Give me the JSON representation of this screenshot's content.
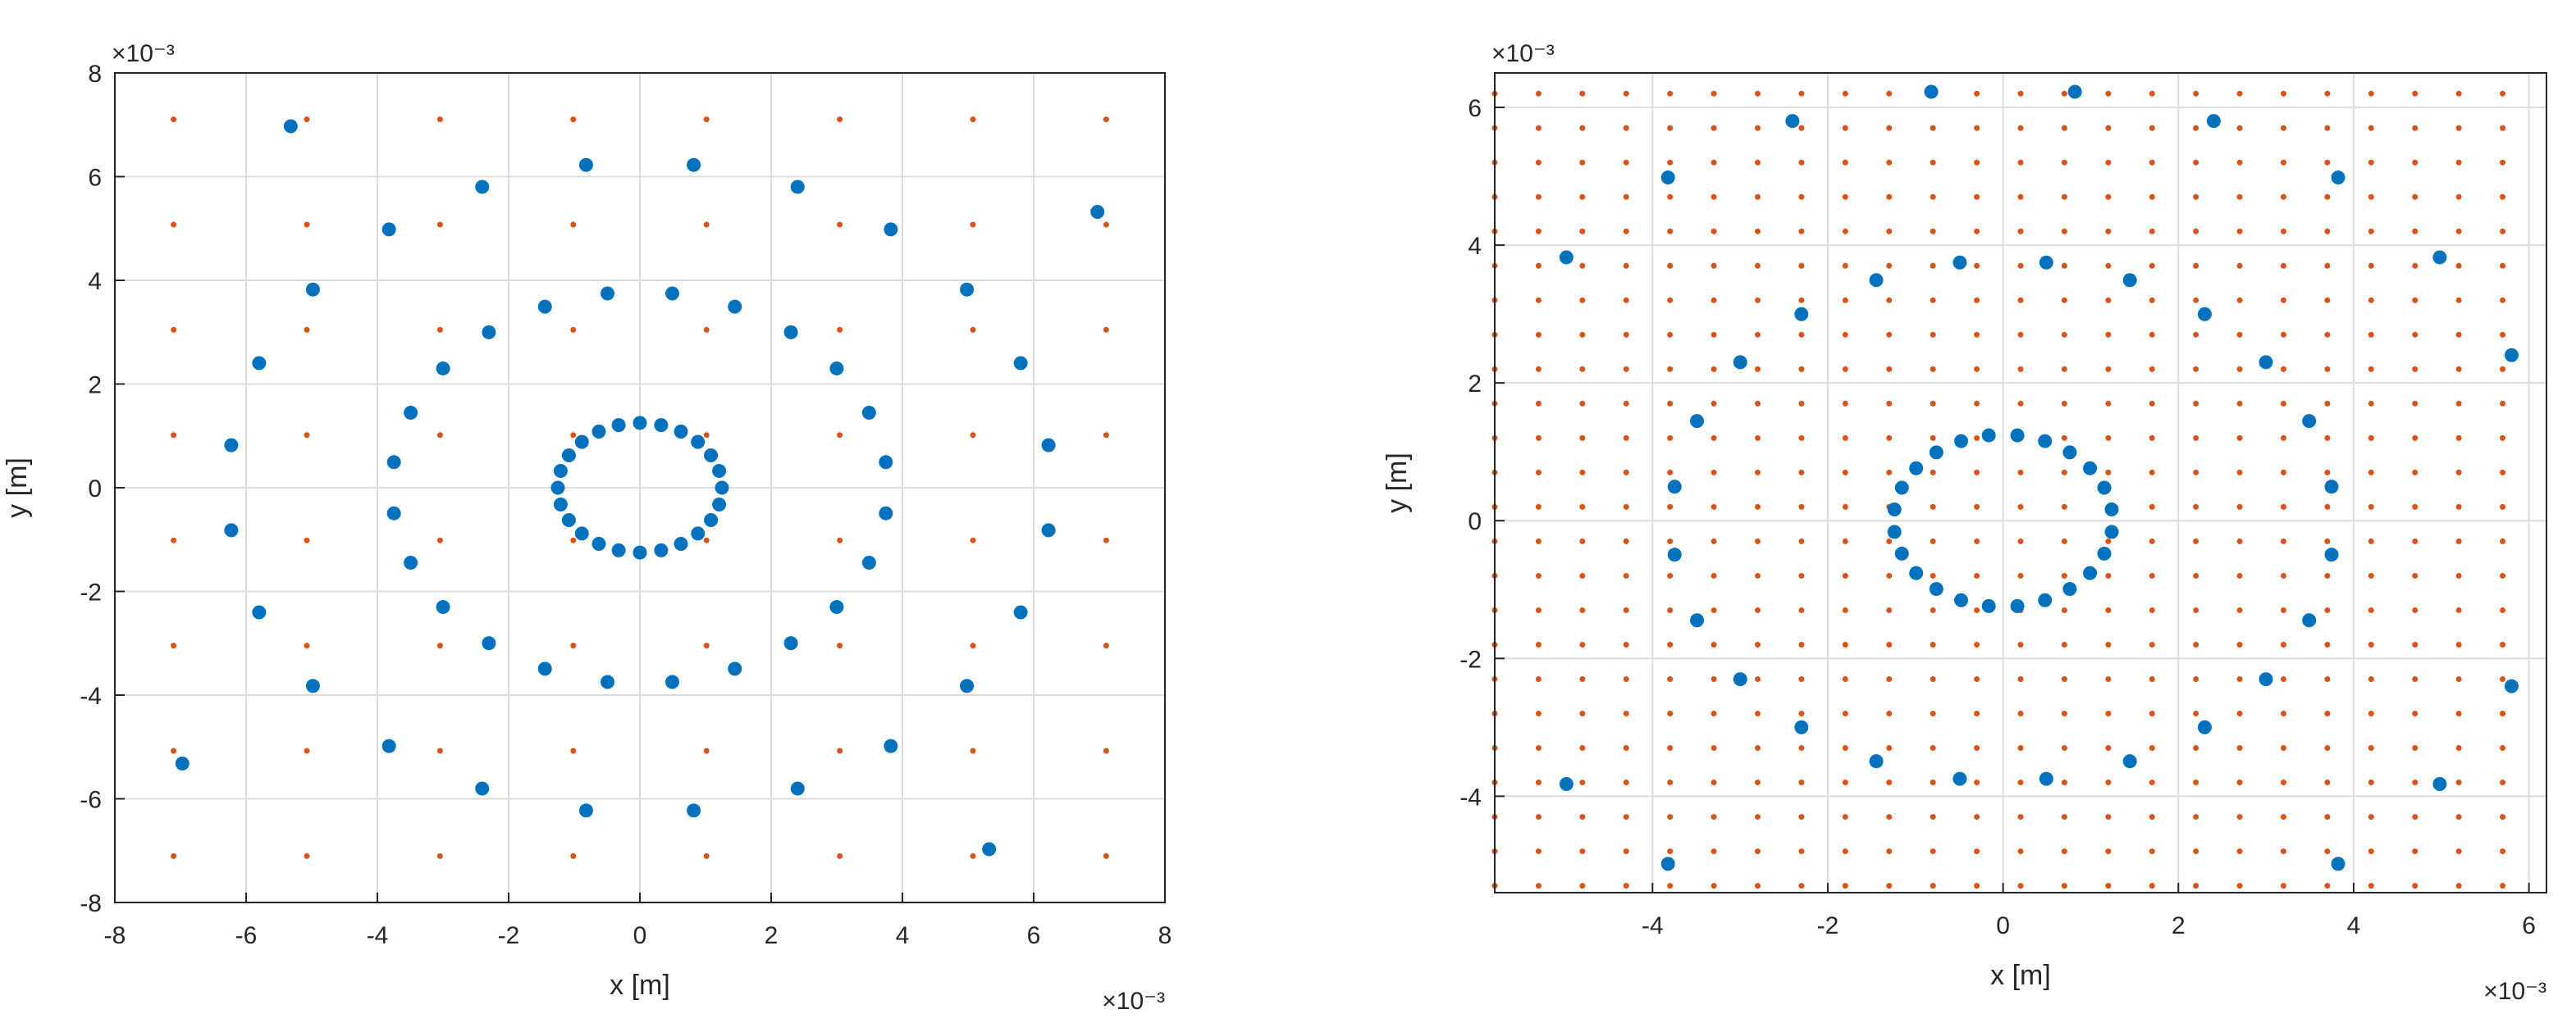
{
  "colors": {
    "array_points": "#0072BD",
    "grid_points": "#D95319",
    "grid": "#dcdcdc",
    "axis": "#262626"
  },
  "chart_data": [
    {
      "type": "scatter",
      "title": "",
      "xlabel": "x [m]",
      "ylabel": "y [m]",
      "x_exponent": "×10⁻³",
      "y_exponent": "×10⁻³",
      "xlim": [
        -8,
        8
      ],
      "ylim": [
        -8,
        8
      ],
      "xticks": [
        "-8",
        "-6",
        "-4",
        "-2",
        "0",
        "2",
        "4",
        "6",
        "8"
      ],
      "yticks": [
        "-8",
        "-6",
        "-4",
        "-2",
        "0",
        "2",
        "4",
        "6",
        "8"
      ],
      "grid": true,
      "series": [
        {
          "marker": "circle-large",
          "color": "#0072BD",
          "rings": [
            {
              "radius": 1.25,
              "count": 24,
              "phase_deg": 0
            },
            {
              "radius": 3.78,
              "count": 24,
              "phase_deg": 7.5
            },
            {
              "radius": 6.28,
              "count": 24,
              "phase_deg": 7.5
            },
            {
              "radius": 8.77,
              "count": 8,
              "phase_deg": 37.35
            }
          ]
        },
        {
          "marker": "point-small",
          "color": "#D95319",
          "grid_spacing": 2.03,
          "grid_count": 8
        }
      ]
    },
    {
      "type": "scatter",
      "title": "",
      "xlabel": "x [m]",
      "ylabel": "y [m]",
      "x_exponent": "×10⁻³",
      "y_exponent": "×10⁻³",
      "xlim": [
        -5.8,
        6.2
      ],
      "ylim": [
        -5.4,
        6.5
      ],
      "xticks": [
        "-4",
        "-2",
        "0",
        "2",
        "4",
        "6"
      ],
      "yticks": [
        "-4",
        "-2",
        "0",
        "2",
        "4",
        "6"
      ],
      "grid": true,
      "series": [
        {
          "marker": "circle-large",
          "color": "#0072BD",
          "rings": [
            {
              "radius": 1.25,
              "count": 24,
              "phase_deg": 7.5
            },
            {
              "radius": 3.78,
              "count": 24,
              "phase_deg": 7.5
            },
            {
              "radius": 6.28,
              "count": 24,
              "phase_deg": 7.5
            },
            {
              "radius": 8.77,
              "count": 8,
              "phase_deg": 37.35
            }
          ]
        },
        {
          "marker": "point-small",
          "color": "#D95319",
          "grid_spacing": 0.5,
          "grid_start": [
            -5.8,
            -5.3
          ],
          "grid_count_x": 24,
          "grid_count_y": 24
        }
      ]
    }
  ]
}
